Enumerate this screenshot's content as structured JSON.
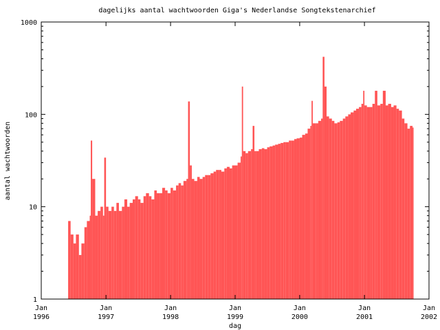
{
  "chart_data": {
    "type": "bar",
    "title": "dagelijks aantal wachtwoorden Giga's Nederlandse Songtekstenarchief",
    "xlabel": "dag",
    "ylabel": "aantal wachtwoorden",
    "x_range": [
      "1996-01-01",
      "2002-01-01"
    ],
    "ylim": [
      1,
      1000
    ],
    "y_scale": "log",
    "grid": false,
    "legend": "none",
    "bar_color": "#ff5555",
    "y_ticks": [
      {
        "value": 1,
        "label": "1"
      },
      {
        "value": 10,
        "label": "10"
      },
      {
        "value": 100,
        "label": "100"
      },
      {
        "value": 1000,
        "label": "1000"
      }
    ],
    "x_ticks": [
      {
        "date": "1996-01-01",
        "label_month": "Jan",
        "label_year": "1996"
      },
      {
        "date": "1997-01-01",
        "label_month": "Jan",
        "label_year": "1997"
      },
      {
        "date": "1998-01-01",
        "label_month": "Jan",
        "label_year": "1998"
      },
      {
        "date": "1999-01-01",
        "label_month": "Jan",
        "label_year": "1999"
      },
      {
        "date": "2000-01-01",
        "label_month": "Jan",
        "label_year": "2000"
      },
      {
        "date": "2001-01-01",
        "label_month": "Jan",
        "label_year": "2001"
      },
      {
        "date": "2002-01-01",
        "label_month": "Jan",
        "label_year": "2002"
      }
    ],
    "series": [
      {
        "points": [
          [
            "1996-06-01",
            7
          ],
          [
            "1996-06-15",
            5
          ],
          [
            "1996-07-01",
            4
          ],
          [
            "1996-07-15",
            5
          ],
          [
            "1996-08-01",
            3
          ],
          [
            "1996-08-15",
            4
          ],
          [
            "1996-09-01",
            6
          ],
          [
            "1996-09-15",
            7
          ],
          [
            "1996-10-01",
            8
          ],
          [
            "1996-10-07",
            52
          ],
          [
            "1996-10-15",
            20
          ],
          [
            "1996-11-01",
            8
          ],
          [
            "1996-11-15",
            9
          ],
          [
            "1996-12-01",
            10
          ],
          [
            "1996-12-15",
            8
          ],
          [
            "1996-12-22",
            34
          ],
          [
            "1997-01-01",
            10
          ],
          [
            "1997-01-15",
            9
          ],
          [
            "1997-02-01",
            10
          ],
          [
            "1997-02-15",
            9
          ],
          [
            "1997-03-01",
            11
          ],
          [
            "1997-03-15",
            9
          ],
          [
            "1997-04-01",
            10
          ],
          [
            "1997-04-15",
            12
          ],
          [
            "1997-05-01",
            10
          ],
          [
            "1997-05-15",
            11
          ],
          [
            "1997-06-01",
            12
          ],
          [
            "1997-06-15",
            13
          ],
          [
            "1997-07-01",
            12
          ],
          [
            "1997-07-15",
            11
          ],
          [
            "1997-08-01",
            13
          ],
          [
            "1997-08-15",
            14
          ],
          [
            "1997-09-01",
            13
          ],
          [
            "1997-09-15",
            12
          ],
          [
            "1997-10-01",
            15
          ],
          [
            "1997-10-15",
            14
          ],
          [
            "1997-11-01",
            14
          ],
          [
            "1997-11-15",
            16
          ],
          [
            "1997-12-01",
            15
          ],
          [
            "1997-12-15",
            14
          ],
          [
            "1998-01-01",
            16
          ],
          [
            "1998-01-15",
            15
          ],
          [
            "1998-02-01",
            17
          ],
          [
            "1998-02-15",
            18
          ],
          [
            "1998-03-01",
            17
          ],
          [
            "1998-03-15",
            19
          ],
          [
            "1998-04-01",
            20
          ],
          [
            "1998-04-10",
            138
          ],
          [
            "1998-04-20",
            28
          ],
          [
            "1998-05-01",
            20
          ],
          [
            "1998-05-15",
            19
          ],
          [
            "1998-06-01",
            21
          ],
          [
            "1998-06-15",
            20
          ],
          [
            "1998-07-01",
            21
          ],
          [
            "1998-07-15",
            22
          ],
          [
            "1998-08-01",
            22
          ],
          [
            "1998-08-15",
            23
          ],
          [
            "1998-09-01",
            24
          ],
          [
            "1998-09-15",
            25
          ],
          [
            "1998-10-01",
            25
          ],
          [
            "1998-10-15",
            24
          ],
          [
            "1998-11-01",
            26
          ],
          [
            "1998-11-15",
            27
          ],
          [
            "1998-12-01",
            26
          ],
          [
            "1998-12-15",
            28
          ],
          [
            "1999-01-01",
            28
          ],
          [
            "1999-01-15",
            30
          ],
          [
            "1999-02-01",
            35
          ],
          [
            "1999-02-08",
            200
          ],
          [
            "1999-02-15",
            40
          ],
          [
            "1999-03-01",
            38
          ],
          [
            "1999-03-15",
            40
          ],
          [
            "1999-04-01",
            42
          ],
          [
            "1999-04-10",
            75
          ],
          [
            "1999-04-20",
            40
          ],
          [
            "1999-05-01",
            40
          ],
          [
            "1999-05-15",
            42
          ],
          [
            "1999-06-01",
            43
          ],
          [
            "1999-06-15",
            42
          ],
          [
            "1999-07-01",
            44
          ],
          [
            "1999-07-15",
            45
          ],
          [
            "1999-08-01",
            46
          ],
          [
            "1999-08-15",
            47
          ],
          [
            "1999-09-01",
            48
          ],
          [
            "1999-09-15",
            49
          ],
          [
            "1999-10-01",
            50
          ],
          [
            "1999-10-15",
            50
          ],
          [
            "1999-11-01",
            52
          ],
          [
            "1999-11-15",
            52
          ],
          [
            "1999-12-01",
            54
          ],
          [
            "1999-12-15",
            55
          ],
          [
            "2000-01-01",
            56
          ],
          [
            "2000-01-15",
            60
          ],
          [
            "2000-02-01",
            62
          ],
          [
            "2000-02-15",
            70
          ],
          [
            "2000-03-01",
            75
          ],
          [
            "2000-03-08",
            140
          ],
          [
            "2000-03-15",
            80
          ],
          [
            "2000-04-01",
            80
          ],
          [
            "2000-04-15",
            85
          ],
          [
            "2000-05-01",
            90
          ],
          [
            "2000-05-10",
            420
          ],
          [
            "2000-05-20",
            200
          ],
          [
            "2000-06-01",
            95
          ],
          [
            "2000-06-15",
            90
          ],
          [
            "2000-07-01",
            85
          ],
          [
            "2000-07-15",
            80
          ],
          [
            "2000-08-01",
            82
          ],
          [
            "2000-08-15",
            85
          ],
          [
            "2000-09-01",
            90
          ],
          [
            "2000-09-15",
            95
          ],
          [
            "2000-10-01",
            100
          ],
          [
            "2000-10-15",
            105
          ],
          [
            "2000-11-01",
            110
          ],
          [
            "2000-11-15",
            115
          ],
          [
            "2000-12-01",
            120
          ],
          [
            "2000-12-15",
            130
          ],
          [
            "2000-12-25",
            180
          ],
          [
            "2001-01-01",
            125
          ],
          [
            "2001-01-15",
            120
          ],
          [
            "2001-02-01",
            120
          ],
          [
            "2001-02-15",
            130
          ],
          [
            "2001-03-01",
            180
          ],
          [
            "2001-03-15",
            125
          ],
          [
            "2001-04-01",
            130
          ],
          [
            "2001-04-15",
            180
          ],
          [
            "2001-05-01",
            125
          ],
          [
            "2001-05-15",
            130
          ],
          [
            "2001-06-01",
            120
          ],
          [
            "2001-06-15",
            125
          ],
          [
            "2001-07-01",
            115
          ],
          [
            "2001-07-15",
            110
          ],
          [
            "2001-08-01",
            90
          ],
          [
            "2001-08-15",
            80
          ],
          [
            "2001-09-01",
            70
          ],
          [
            "2001-09-15",
            75
          ],
          [
            "2001-09-30",
            72
          ]
        ]
      }
    ]
  }
}
